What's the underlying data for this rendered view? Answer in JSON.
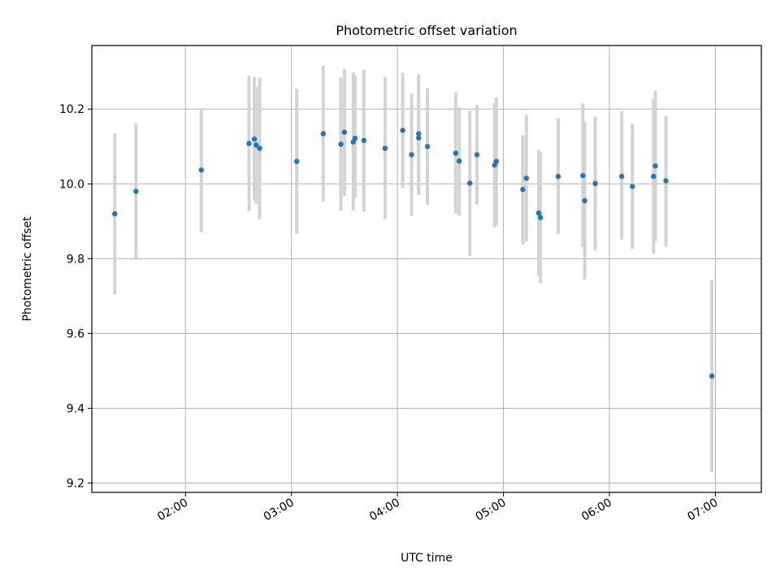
{
  "chart_data": {
    "type": "scatter",
    "title": "Photometric offset variation",
    "xlabel": "UTC time",
    "ylabel": "Photometric offset",
    "xlim": [
      "01:07",
      "07:26"
    ],
    "ylim": [
      9.175,
      10.37
    ],
    "x_ticks": [
      "02:00",
      "03:00",
      "04:00",
      "05:00",
      "06:00",
      "07:00"
    ],
    "y_ticks": [
      "9.2",
      "9.4",
      "9.6",
      "9.8",
      "10.0",
      "10.2"
    ],
    "y_tick_values": [
      9.2,
      9.4,
      9.6,
      9.8,
      10.0,
      10.2
    ],
    "grid": true,
    "colors": {
      "points": "#1f77b4",
      "errorbars": "#d3d3d3",
      "grid": "#b0b0b0"
    },
    "points": [
      {
        "x": "01:20",
        "y": 9.92,
        "ylo": 9.705,
        "yhi": 10.135
      },
      {
        "x": "01:32",
        "y": 9.98,
        "ylo": 9.797,
        "yhi": 10.162
      },
      {
        "x": "02:09",
        "y": 10.037,
        "ylo": 9.871,
        "yhi": 10.203
      },
      {
        "x": "02:36",
        "y": 10.108,
        "ylo": 9.927,
        "yhi": 10.289
      },
      {
        "x": "02:39",
        "y": 10.12,
        "ylo": 9.956,
        "yhi": 10.285
      },
      {
        "x": "02:40",
        "y": 10.104,
        "ylo": 9.947,
        "yhi": 10.26
      },
      {
        "x": "02:42",
        "y": 10.095,
        "ylo": 9.905,
        "yhi": 10.284
      },
      {
        "x": "03:03",
        "y": 10.06,
        "ylo": 9.866,
        "yhi": 10.254
      },
      {
        "x": "03:18",
        "y": 10.134,
        "ylo": 9.953,
        "yhi": 10.316
      },
      {
        "x": "03:28",
        "y": 10.106,
        "ylo": 9.928,
        "yhi": 10.284
      },
      {
        "x": "03:30",
        "y": 10.138,
        "ylo": 9.968,
        "yhi": 10.307
      },
      {
        "x": "03:35",
        "y": 10.112,
        "ylo": 9.929,
        "yhi": 10.298
      },
      {
        "x": "03:36",
        "y": 10.122,
        "ylo": 9.962,
        "yhi": 10.289
      },
      {
        "x": "03:41",
        "y": 10.116,
        "ylo": 9.926,
        "yhi": 10.305
      },
      {
        "x": "03:53",
        "y": 10.095,
        "ylo": 9.906,
        "yhi": 10.285
      },
      {
        "x": "04:03",
        "y": 10.143,
        "ylo": 9.99,
        "yhi": 10.297
      },
      {
        "x": "04:08",
        "y": 10.078,
        "ylo": 9.915,
        "yhi": 10.241
      },
      {
        "x": "04:12",
        "y": 10.134,
        "ylo": 9.97,
        "yhi": 10.293
      },
      {
        "x": "04:12",
        "y": 10.123,
        "ylo": 9.985,
        "yhi": 10.26
      },
      {
        "x": "04:17",
        "y": 10.1,
        "ylo": 9.944,
        "yhi": 10.256
      },
      {
        "x": "04:33",
        "y": 10.082,
        "ylo": 9.92,
        "yhi": 10.244
      },
      {
        "x": "04:35",
        "y": 10.061,
        "ylo": 9.915,
        "yhi": 10.205
      },
      {
        "x": "04:41",
        "y": 10.002,
        "ylo": 9.807,
        "yhi": 10.196
      },
      {
        "x": "04:45",
        "y": 10.078,
        "ylo": 9.945,
        "yhi": 10.211
      },
      {
        "x": "04:55",
        "y": 10.05,
        "ylo": 9.883,
        "yhi": 10.217
      },
      {
        "x": "04:56",
        "y": 10.06,
        "ylo": 9.889,
        "yhi": 10.231
      },
      {
        "x": "05:11",
        "y": 9.985,
        "ylo": 9.838,
        "yhi": 10.13
      },
      {
        "x": "05:13",
        "y": 10.015,
        "ylo": 9.846,
        "yhi": 10.185
      },
      {
        "x": "05:20",
        "y": 9.922,
        "ylo": 9.754,
        "yhi": 10.09
      },
      {
        "x": "05:21",
        "y": 9.91,
        "ylo": 9.734,
        "yhi": 10.086
      },
      {
        "x": "05:31",
        "y": 10.02,
        "ylo": 9.866,
        "yhi": 10.175
      },
      {
        "x": "05:45",
        "y": 10.022,
        "ylo": 9.832,
        "yhi": 10.216
      },
      {
        "x": "05:46",
        "y": 9.955,
        "ylo": 9.744,
        "yhi": 10.165
      },
      {
        "x": "05:52",
        "y": 10.001,
        "ylo": 9.822,
        "yhi": 10.18
      },
      {
        "x": "06:07",
        "y": 10.02,
        "ylo": 9.851,
        "yhi": 10.195
      },
      {
        "x": "06:13",
        "y": 9.993,
        "ylo": 9.826,
        "yhi": 10.161
      },
      {
        "x": "06:25",
        "y": 10.02,
        "ylo": 9.813,
        "yhi": 10.228
      },
      {
        "x": "06:26",
        "y": 10.048,
        "ylo": 9.846,
        "yhi": 10.249
      },
      {
        "x": "06:32",
        "y": 10.008,
        "ylo": 9.832,
        "yhi": 10.182
      },
      {
        "x": "06:58",
        "y": 9.486,
        "ylo": 9.229,
        "yhi": 9.742
      }
    ]
  }
}
